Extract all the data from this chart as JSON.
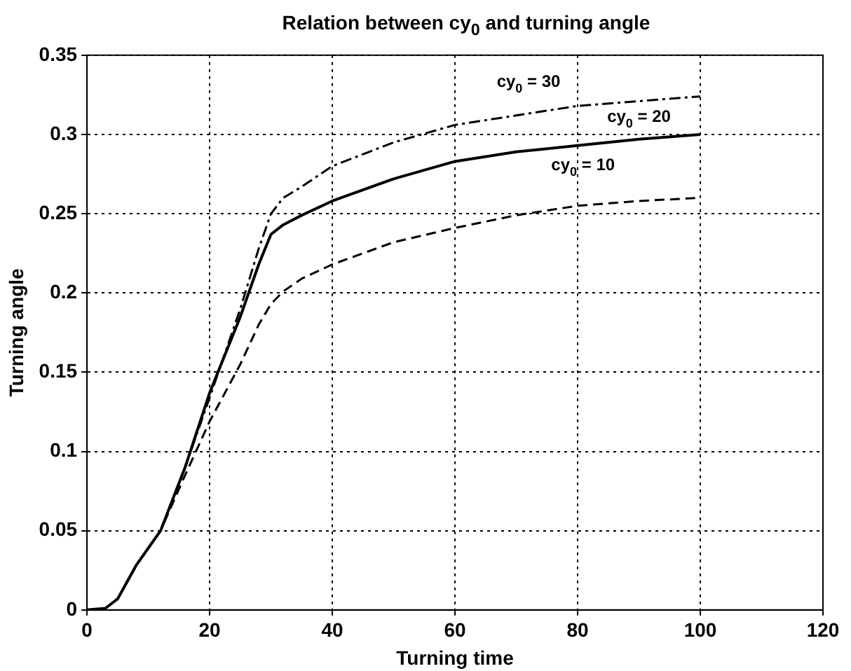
{
  "chart_data": {
    "type": "line",
    "title": "Relation between cy$_{0}$ and turning angle",
    "xlabel": "Turning time",
    "ylabel": "Turning angle",
    "xlim": [
      0,
      120
    ],
    "xticks": [
      0,
      20,
      40,
      60,
      80,
      100,
      120
    ],
    "ylim": [
      0,
      0.35
    ],
    "yticks": [
      0,
      0.05,
      0.1,
      0.15,
      0.2,
      0.25,
      0.3,
      0.35
    ],
    "grid": true,
    "legend": false,
    "marker": "none",
    "x": [
      0,
      3,
      5,
      8,
      12,
      16,
      20,
      25,
      28,
      30,
      32,
      35,
      40,
      50,
      60,
      70,
      80,
      90,
      100
    ],
    "series": [
      {
        "color": "#000000",
        "line_style": "dashdot",
        "values": [
          0,
          0.001,
          0.007,
          0.028,
          0.05,
          0.09,
          0.134,
          0.19,
          0.228,
          0.25,
          0.26,
          0.267,
          0.28,
          0.295,
          0.306,
          0.312,
          0.318,
          0.321,
          0.324
        ]
      },
      {
        "color": "#000000",
        "line_style": "solid",
        "values": [
          0,
          0.001,
          0.007,
          0.028,
          0.05,
          0.09,
          0.137,
          0.185,
          0.218,
          0.237,
          0.243,
          0.249,
          0.258,
          0.272,
          0.283,
          0.289,
          0.293,
          0.297,
          0.3
        ]
      },
      {
        "color": "#000000",
        "line_style": "dashed",
        "values": [
          0,
          0.001,
          0.007,
          0.028,
          0.05,
          0.085,
          0.119,
          0.155,
          0.18,
          0.193,
          0.201,
          0.209,
          0.218,
          0.232,
          0.241,
          0.249,
          0.255,
          0.258,
          0.26
        ]
      }
    ],
    "annotations": [
      "cy$_{0}$ = 30",
      "cy$_{0}$ = 20",
      "cy$_{0}$ = 10"
    ]
  }
}
